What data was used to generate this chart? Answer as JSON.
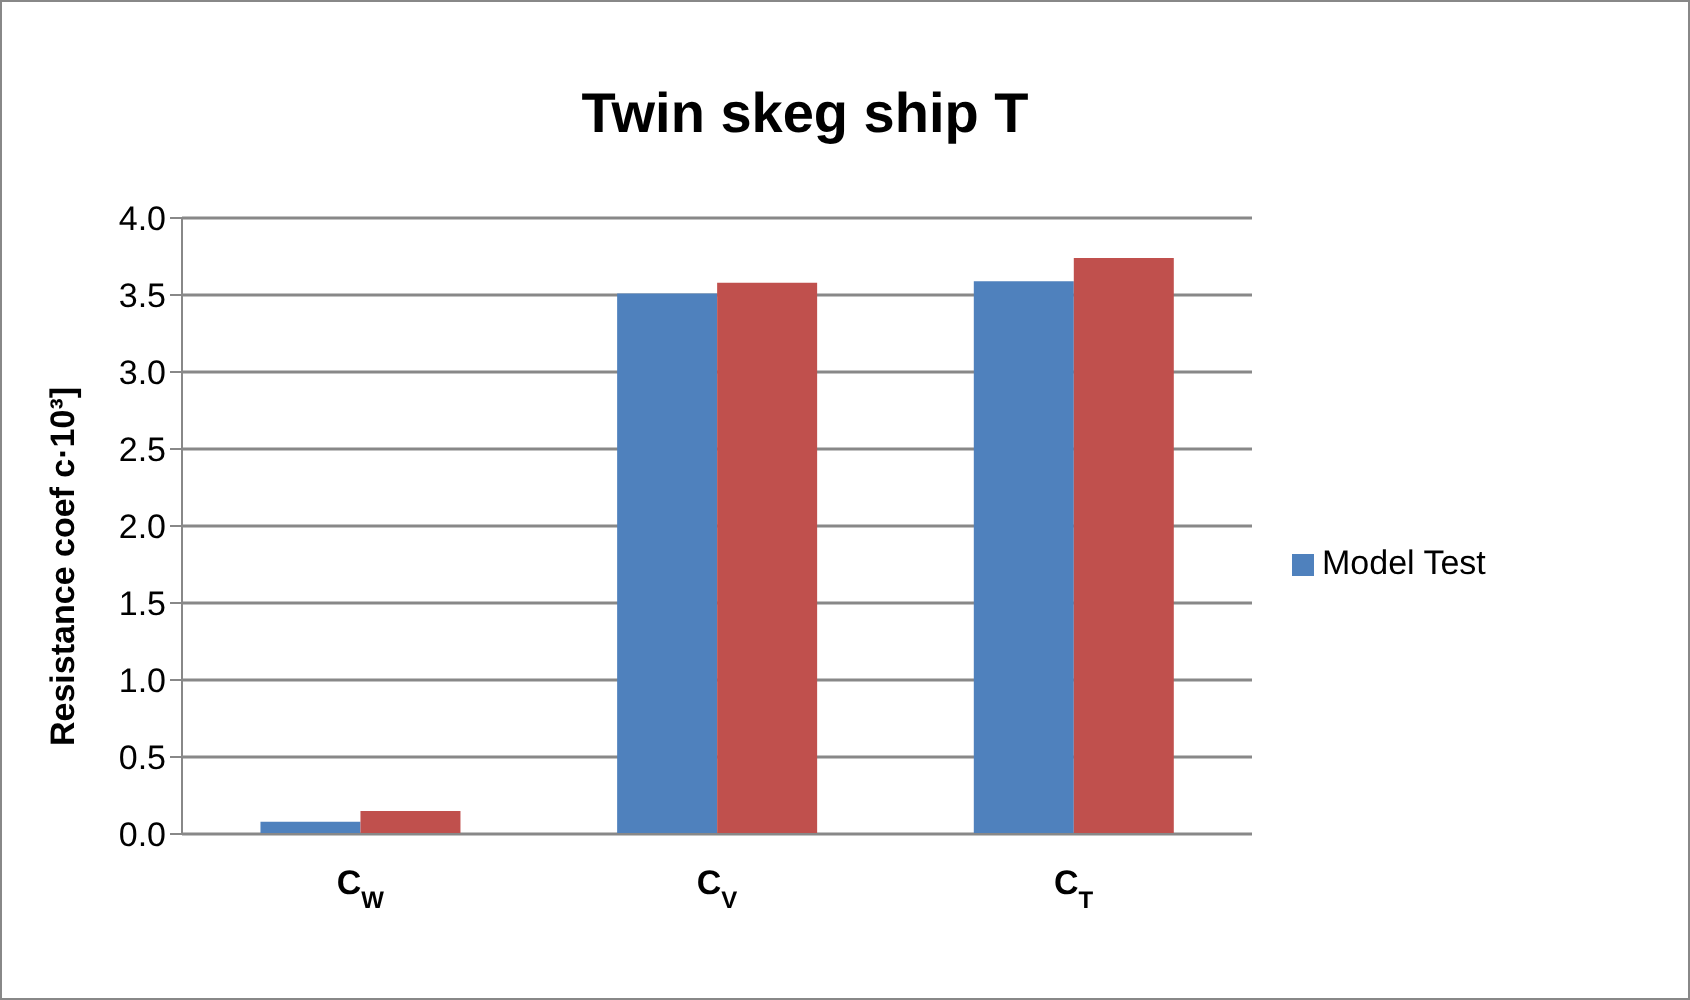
{
  "chart_data": {
    "type": "bar",
    "title": "Twin skeg ship T",
    "ylabel": "Resistance coef c·10³]",
    "categories": [
      "C$_{W}$",
      "C$_{V}$",
      "C$_{T}$"
    ],
    "series": [
      {
        "name": "Model Test",
        "color": "#4f81bd",
        "values": [
          0.08,
          3.51,
          3.59
        ]
      },
      {
        "color": "#c0504d",
        "values": [
          0.15,
          3.58,
          3.74
        ]
      }
    ],
    "ylim": [
      0,
      4
    ],
    "yticks": [
      {
        "value": 0,
        "label": "0.0"
      },
      {
        "value": 0.5,
        "label": "0.5"
      },
      {
        "value": 1,
        "label": "1.0"
      },
      {
        "value": 1.5,
        "label": "1.5"
      },
      {
        "value": 2,
        "label": "2.0"
      },
      {
        "value": 2.5,
        "label": "2.5"
      },
      {
        "value": 3,
        "label": "3.0"
      },
      {
        "value": 3.5,
        "label": "3.5"
      },
      {
        "value": 4,
        "label": "4.0"
      }
    ],
    "grid": "y",
    "legend": "right"
  }
}
